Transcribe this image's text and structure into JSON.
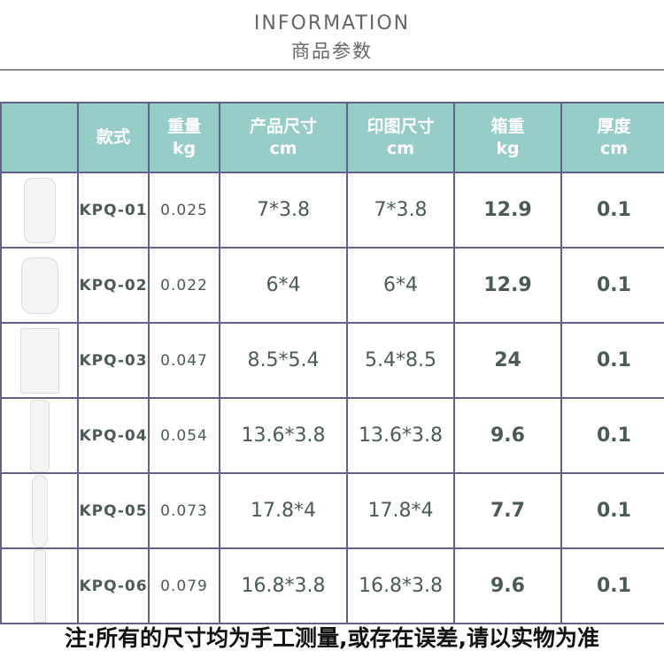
{
  "header": {
    "title_en": "INFORMATION",
    "title_cn": "商品参数"
  },
  "table": {
    "columns": [
      {
        "label": "",
        "unit": ""
      },
      {
        "label": "款式",
        "unit": ""
      },
      {
        "label": "重量",
        "unit": "kg"
      },
      {
        "label": "产品尺寸",
        "unit": "cm"
      },
      {
        "label": "印图尺寸",
        "unit": "cm"
      },
      {
        "label": "箱重",
        "unit": "kg"
      },
      {
        "label": "厚度",
        "unit": "cm"
      }
    ],
    "rows": [
      {
        "code": "KPQ-01",
        "weight": "0.025",
        "size": "7*3.8",
        "print": "7*3.8",
        "box": "12.9",
        "thick": "0.1"
      },
      {
        "code": "KPQ-02",
        "weight": "0.022",
        "size": "6*4",
        "print": "6*4",
        "box": "12.9",
        "thick": "0.1"
      },
      {
        "code": "KPQ-03",
        "weight": "0.047",
        "size": "8.5*5.4",
        "print": "5.4*8.5",
        "box": "24",
        "thick": "0.1"
      },
      {
        "code": "KPQ-04",
        "weight": "0.054",
        "size": "13.6*3.8",
        "print": "13.6*3.8",
        "box": "9.6",
        "thick": "0.1"
      },
      {
        "code": "KPQ-05",
        "weight": "0.073",
        "size": "17.8*4",
        "print": "17.8*4",
        "box": "7.7",
        "thick": "0.1"
      },
      {
        "code": "KPQ-06",
        "weight": "0.079",
        "size": "16.8*3.8",
        "print": "16.8*3.8",
        "box": "9.6",
        "thick": "0.1"
      }
    ]
  },
  "note": "注:所有的尺寸均为手工测量,或存在误差,请以实物为准"
}
